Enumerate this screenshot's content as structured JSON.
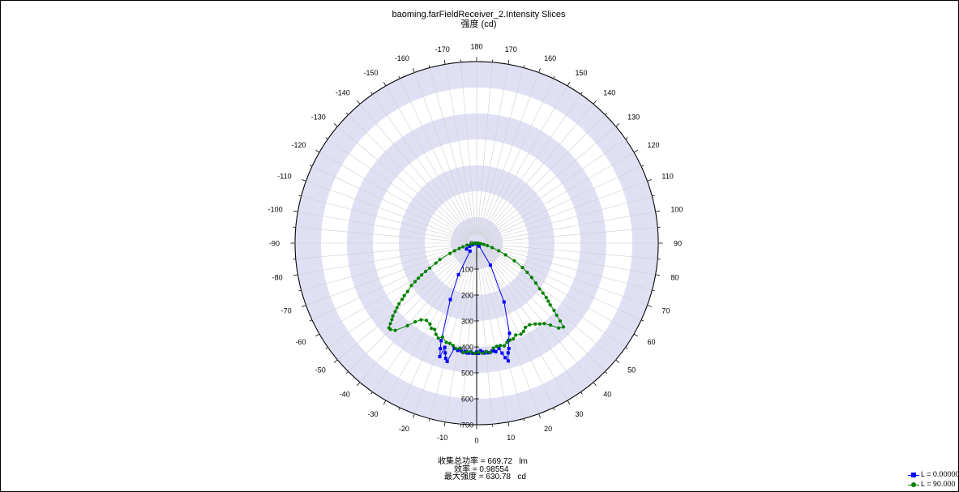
{
  "header": {
    "title": "baoming.farFieldReceiver_2.Intensity Slices",
    "subtitle": "强度 (cd)"
  },
  "stats": {
    "line1": "收集总功率 = 669.72   lm",
    "line2": "效率 = 0.98554",
    "line3": "最大强度 = 630.78   cd"
  },
  "legend": {
    "items": [
      {
        "label": "L = 0.00000",
        "color": "#0000ff",
        "marker": "square"
      },
      {
        "label": "L = 90.000",
        "color": "#008000",
        "marker": "circle"
      }
    ]
  },
  "chart_data": {
    "type": "polar-line",
    "title": "baoming.farFieldReceiver_2.Intensity Slices",
    "radial_label": "强度 (cd)",
    "radial_range": [
      0,
      700
    ],
    "radial_ticks": [
      0,
      100,
      200,
      300,
      400,
      500,
      600,
      700
    ],
    "angle_ticks": [
      0,
      10,
      20,
      30,
      40,
      50,
      60,
      70,
      80,
      90,
      100,
      110,
      120,
      130,
      140,
      150,
      160,
      170,
      180,
      -170,
      -160,
      -150,
      -140,
      -130,
      -120,
      -110,
      -100,
      -90,
      -80,
      -70,
      -60,
      -50,
      -40,
      -30,
      -20,
      -10
    ],
    "angle_zero_at": "bottom",
    "angle_direction": "counterclockwise",
    "grid": true,
    "legend_position": "bottom-right",
    "colors": {
      "band": "#e0e0f5",
      "grid": "#cfcfcf",
      "series_0": "#0000ff",
      "series_90": "#008000"
    },
    "series": [
      {
        "name": "L = 0.00000",
        "color": "#0000ff",
        "marker": "square",
        "points": [
          [
            -90,
            0
          ],
          [
            -85,
            2
          ],
          [
            -80,
            5
          ],
          [
            -75,
            10
          ],
          [
            -70,
            18
          ],
          [
            -65,
            30
          ],
          [
            -60,
            45
          ],
          [
            -40,
            40
          ],
          [
            -30,
            140
          ],
          [
            -25,
            240
          ],
          [
            -20,
            400
          ],
          [
            -19,
            430
          ],
          [
            -18,
            460
          ],
          [
            -17,
            420
          ],
          [
            -16,
            440
          ],
          [
            -15,
            460
          ],
          [
            -14,
            470
          ],
          [
            -12,
            415
          ],
          [
            -10,
            420
          ],
          [
            -8,
            420
          ],
          [
            -7,
            425
          ],
          [
            -6,
            420
          ],
          [
            -5,
            425
          ],
          [
            -4,
            425
          ],
          [
            -3,
            420
          ],
          [
            -2,
            425
          ],
          [
            -1,
            425
          ],
          [
            0,
            420
          ],
          [
            1,
            425
          ],
          [
            2,
            415
          ],
          [
            3,
            420
          ],
          [
            4,
            425
          ],
          [
            5,
            420
          ],
          [
            6,
            425
          ],
          [
            7,
            425
          ],
          [
            8,
            420
          ],
          [
            9,
            420
          ],
          [
            10,
            425
          ],
          [
            12,
            415
          ],
          [
            13,
            435
          ],
          [
            14,
            455
          ],
          [
            15,
            470
          ],
          [
            16,
            440
          ],
          [
            17,
            425
          ],
          [
            18,
            395
          ],
          [
            20,
            370
          ],
          [
            25,
            250
          ],
          [
            32,
            100
          ],
          [
            40,
            15
          ],
          [
            60,
            5
          ],
          [
            70,
            3
          ],
          [
            80,
            2
          ],
          [
            90,
            0
          ]
        ]
      },
      {
        "name": "L = 90.000",
        "color": "#008000",
        "marker": "circle",
        "points": [
          [
            -90,
            0
          ],
          [
            -86,
            10
          ],
          [
            -82,
            22
          ],
          [
            -78,
            38
          ],
          [
            -75,
            55
          ],
          [
            -73,
            70
          ],
          [
            -71,
            90
          ],
          [
            -69,
            110
          ],
          [
            -66,
            155
          ],
          [
            -64,
            175
          ],
          [
            -62,
            205
          ],
          [
            -61,
            225
          ],
          [
            -60,
            245
          ],
          [
            -59,
            262
          ],
          [
            -58,
            280
          ],
          [
            -57,
            300
          ],
          [
            -55,
            325
          ],
          [
            -54,
            345
          ],
          [
            -53,
            360
          ],
          [
            -52,
            380
          ],
          [
            -51,
            395
          ],
          [
            -50,
            410
          ],
          [
            -49,
            428
          ],
          [
            -48,
            440
          ],
          [
            -47,
            455
          ],
          [
            -46,
            470
          ],
          [
            -45,
            470
          ],
          [
            -43,
            460
          ],
          [
            -40,
            415
          ],
          [
            -38,
            385
          ],
          [
            -36,
            365
          ],
          [
            -33,
            355
          ],
          [
            -30,
            360
          ],
          [
            -28,
            372
          ],
          [
            -26,
            370
          ],
          [
            -24,
            385
          ],
          [
            -22,
            395
          ],
          [
            -20,
            385
          ],
          [
            -17,
            400
          ],
          [
            -15,
            400
          ],
          [
            -13,
            405
          ],
          [
            -11,
            415
          ],
          [
            -9,
            410
          ],
          [
            -7,
            425
          ],
          [
            -5,
            420
          ],
          [
            -3,
            420
          ],
          [
            -1,
            425
          ],
          [
            1,
            420
          ],
          [
            3,
            425
          ],
          [
            5,
            420
          ],
          [
            7,
            425
          ],
          [
            9,
            410
          ],
          [
            11,
            405
          ],
          [
            13,
            405
          ],
          [
            15,
            410
          ],
          [
            17,
            400
          ],
          [
            19,
            395
          ],
          [
            21,
            395
          ],
          [
            23,
            385
          ],
          [
            26,
            390
          ],
          [
            28,
            385
          ],
          [
            30,
            375
          ],
          [
            33,
            375
          ],
          [
            36,
            385
          ],
          [
            38,
            395
          ],
          [
            40,
            405
          ],
          [
            42,
            425
          ],
          [
            44,
            455
          ],
          [
            46,
            465
          ],
          [
            47,
            440
          ],
          [
            48,
            415
          ],
          [
            49,
            395
          ],
          [
            50,
            370
          ],
          [
            51,
            355
          ],
          [
            52,
            340
          ],
          [
            53,
            320
          ],
          [
            54,
            300
          ],
          [
            56,
            275
          ],
          [
            58,
            250
          ],
          [
            60,
            225
          ],
          [
            62,
            200
          ],
          [
            65,
            160
          ],
          [
            68,
            120
          ],
          [
            71,
            90
          ],
          [
            74,
            62
          ],
          [
            77,
            42
          ],
          [
            80,
            28
          ],
          [
            83,
            16
          ],
          [
            86,
            8
          ],
          [
            90,
            0
          ]
        ]
      }
    ]
  }
}
